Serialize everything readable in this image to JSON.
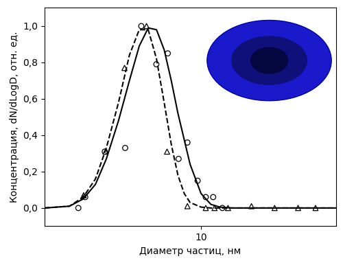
{
  "chart_data": {
    "type": "line",
    "x_label": "Диаметр частиц, нм",
    "y_label": "Концентрация, dN/dLogD, отн. ед.",
    "log": "x",
    "grid": false,
    "xlim": [
      2.2,
      37
    ],
    "xticks": [
      10
    ],
    "ylim": [
      -0.1,
      1.1
    ],
    "yticks": [
      {
        "value": 0.0,
        "label": "0,0"
      },
      {
        "value": 0.2,
        "label": "0,2"
      },
      {
        "value": 0.4,
        "label": "0,4"
      },
      {
        "value": 0.6,
        "label": "0,6"
      },
      {
        "value": 0.8,
        "label": "0,8"
      },
      {
        "value": 1.0,
        "label": "1,0"
      }
    ],
    "series": [
      {
        "type": "line",
        "line_style": "solid",
        "color": "#000000",
        "x": [
          2.2,
          2.8,
          3.2,
          3.6,
          4.0,
          4.5,
          5.0,
          5.5,
          6.0,
          6.5,
          7.0,
          7.5,
          8.0,
          9.0,
          10.0,
          11.0,
          12.0,
          13.5,
          16,
          37
        ],
        "values": [
          0,
          0.01,
          0.05,
          0.13,
          0.27,
          0.48,
          0.7,
          0.89,
          0.99,
          0.98,
          0.87,
          0.7,
          0.52,
          0.24,
          0.08,
          0.02,
          0.005,
          0,
          0,
          0
        ]
      },
      {
        "type": "line",
        "line_style": "dashed",
        "color": "#000000",
        "x": [
          2.2,
          2.8,
          3.2,
          3.6,
          4.0,
          4.5,
          5.0,
          5.5,
          6.0,
          6.5,
          7.0,
          7.5,
          8.0,
          8.5,
          9.0,
          10.0,
          11,
          37
        ],
        "values": [
          0,
          0.01,
          0.06,
          0.16,
          0.33,
          0.58,
          0.84,
          0.98,
          0.98,
          0.82,
          0.58,
          0.35,
          0.18,
          0.08,
          0.03,
          0.005,
          0,
          0
        ]
      },
      {
        "type": "scatter",
        "marker": "o",
        "color": "#000000",
        "x": [
          3.05,
          3.26,
          3.94,
          4.8,
          5.61,
          6.49,
          7.25,
          8.05,
          8.77,
          9.68,
          10.47,
          11.25,
          12.3
        ],
        "values": [
          0,
          0.06,
          0.31,
          0.33,
          1.0,
          0.79,
          0.85,
          0.27,
          0.36,
          0.15,
          0.06,
          0.06,
          0
        ]
      },
      {
        "type": "scatter",
        "marker": "^",
        "color": "#000000",
        "x": [
          3.21,
          3.97,
          4.77,
          5.9,
          7.2,
          8.77,
          10.47,
          11.4,
          12.99,
          16.3,
          20.4,
          25.6,
          30.3
        ],
        "values": [
          0.07,
          0.31,
          0.77,
          1.0,
          0.31,
          0.01,
          0,
          0,
          0,
          0.01,
          0,
          0,
          0
        ]
      }
    ]
  }
}
